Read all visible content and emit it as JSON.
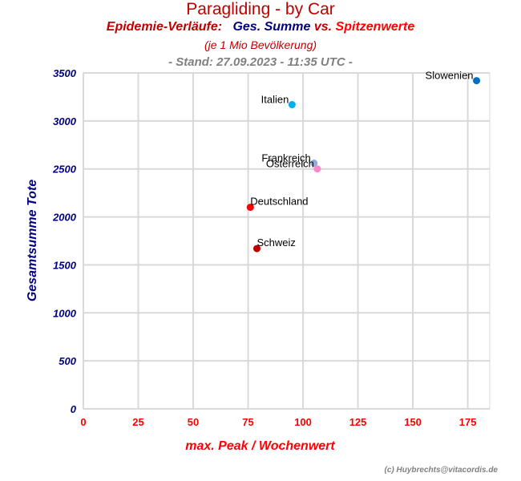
{
  "header": {
    "title": "Paragliding - by Car",
    "subtitle_a": "Epidemie-Verläufe:",
    "subtitle_b": "Ges. Summe",
    "subtitle_vs": "vs.",
    "subtitle_c": "Spitzenwerte",
    "note": "(je 1 Mio Bevölkerung)",
    "stand": "- Stand: 27.09.2023 - 11:35 UTC -"
  },
  "credit": "(c) Huybrechts@vitacordis.de",
  "chart_data": {
    "type": "scatter",
    "title": "Paragliding - by Car",
    "xlabel": "max. Peak / Wochenwert",
    "ylabel": "Gesamtsumme Tote",
    "xlim": [
      0,
      185
    ],
    "ylim": [
      0,
      3500
    ],
    "xticks": [
      0,
      25,
      50,
      75,
      100,
      125,
      150,
      175
    ],
    "yticks": [
      0,
      500,
      1000,
      1500,
      2000,
      2500,
      3000,
      3500
    ],
    "grid": true,
    "points": [
      {
        "label": "Slowenien",
        "x": 179,
        "y": 3420,
        "color": "#0070c0"
      },
      {
        "label": "Italien",
        "x": 95,
        "y": 3170,
        "color": "#00b0f0"
      },
      {
        "label": "Frankreich",
        "x": 105,
        "y": 2560,
        "color": "#8faadc"
      },
      {
        "label": "Österreich",
        "x": 106.5,
        "y": 2500,
        "color": "#ff88cc"
      },
      {
        "label": "Deutschland",
        "x": 76,
        "y": 2100,
        "color": "#ff0000"
      },
      {
        "label": "Schweiz",
        "x": 79,
        "y": 1670,
        "color": "#c00000"
      }
    ]
  }
}
